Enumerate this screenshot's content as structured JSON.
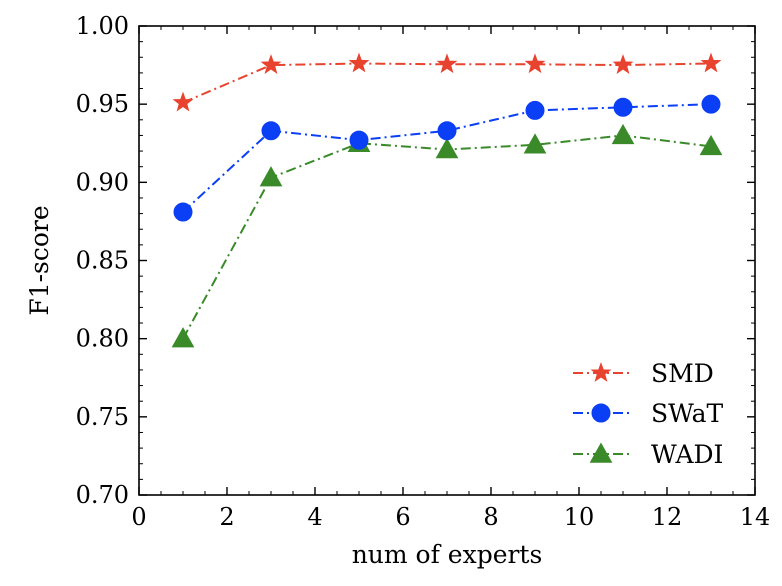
{
  "chart_data": {
    "type": "line",
    "title": "",
    "xlabel": "num of experts",
    "ylabel": "F1-score",
    "xlim": [
      0,
      14
    ],
    "ylim": [
      0.7,
      1.0
    ],
    "x_ticks": [
      0,
      2,
      4,
      6,
      8,
      10,
      12,
      14
    ],
    "x_tick_labels": [
      "0",
      "2",
      "4",
      "6",
      "8",
      "10",
      "12",
      "14"
    ],
    "y_ticks": [
      0.7,
      0.75,
      0.8,
      0.85,
      0.9,
      0.95,
      1.0
    ],
    "y_tick_labels": [
      "0.70",
      "0.75",
      "0.80",
      "0.85",
      "0.90",
      "0.95",
      "1.00"
    ],
    "grid": false,
    "legend_position": "bottom-right",
    "x": [
      1,
      3,
      5,
      7,
      9,
      11,
      13
    ],
    "series": [
      {
        "name": "SMD",
        "marker": "star",
        "color": "#e8432e",
        "values": [
          0.951,
          0.975,
          0.976,
          0.9755,
          0.9755,
          0.975,
          0.976
        ]
      },
      {
        "name": "SWaT",
        "marker": "circle",
        "color": "#0a3ff5",
        "values": [
          0.881,
          0.933,
          0.927,
          0.933,
          0.946,
          0.948,
          0.95
        ]
      },
      {
        "name": "WADI",
        "marker": "triangle",
        "color": "#3a8a2a",
        "values": [
          0.8,
          0.903,
          0.925,
          0.921,
          0.924,
          0.93,
          0.923
        ]
      }
    ]
  }
}
